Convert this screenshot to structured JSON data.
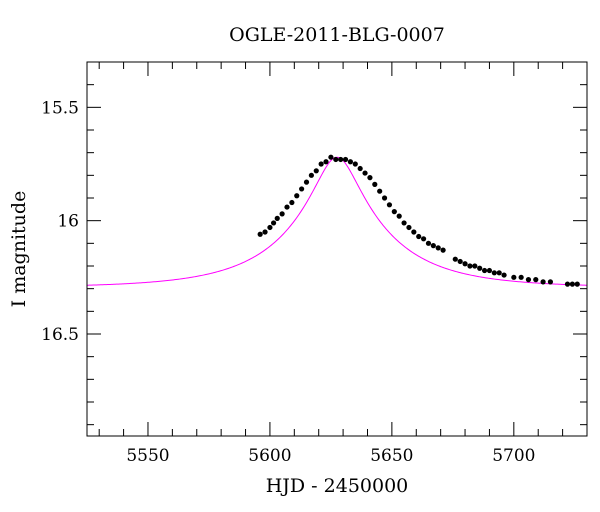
{
  "chart_data": {
    "type": "scatter",
    "title": "OGLE-2011-BLG-0007",
    "xlabel": "HJD - 2450000",
    "ylabel": "I magnitude",
    "xlim": [
      5525,
      5730
    ],
    "ylim": [
      16.95,
      15.3
    ],
    "y_inverted": true,
    "x_ticks": [
      5550,
      5600,
      5650,
      5700
    ],
    "y_ticks": [
      15.5,
      16,
      16.5
    ],
    "y_tick_labels": [
      "15.5",
      "16",
      "16.5"
    ],
    "grid": false,
    "colors": {
      "data_points": "#000000",
      "model_curve": "#ff00ff",
      "axes": "#000000"
    },
    "model": {
      "name": "",
      "kind": "microlensing point-lens fit",
      "t0": 5627.5,
      "u0": 0.21,
      "tE": 40,
      "baseline_mag": 16.295,
      "peak_mag": 15.72
    },
    "series": [
      {
        "name": "",
        "values": [
          [
            5596.0,
            16.06
          ],
          [
            5598.0,
            16.05
          ],
          [
            5600.0,
            16.03
          ],
          [
            5601.5,
            16.01
          ],
          [
            5603.0,
            15.99
          ],
          [
            5605.0,
            15.97
          ],
          [
            5607.0,
            15.94
          ],
          [
            5609.0,
            15.92
          ],
          [
            5611.0,
            15.89
          ],
          [
            5613.0,
            15.86
          ],
          [
            5615.0,
            15.83
          ],
          [
            5617.0,
            15.8
          ],
          [
            5619.0,
            15.78
          ],
          [
            5621.0,
            15.75
          ],
          [
            5623.0,
            15.74
          ],
          [
            5625.0,
            15.72
          ],
          [
            5627.0,
            15.73
          ],
          [
            5629.0,
            15.73
          ],
          [
            5631.0,
            15.73
          ],
          [
            5633.0,
            15.74
          ],
          [
            5635.0,
            15.75
          ],
          [
            5637.0,
            15.77
          ],
          [
            5639.0,
            15.79
          ],
          [
            5641.0,
            15.81
          ],
          [
            5643.0,
            15.84
          ],
          [
            5645.0,
            15.87
          ],
          [
            5647.0,
            15.9
          ],
          [
            5649.0,
            15.93
          ],
          [
            5651.0,
            15.96
          ],
          [
            5653.0,
            15.98
          ],
          [
            5655.0,
            16.01
          ],
          [
            5657.0,
            16.03
          ],
          [
            5659.0,
            16.05
          ],
          [
            5661.0,
            16.07
          ],
          [
            5663.0,
            16.08
          ],
          [
            5665.0,
            16.1
          ],
          [
            5667.0,
            16.11
          ],
          [
            5669.0,
            16.12
          ],
          [
            5671.0,
            16.13
          ],
          [
            5676.0,
            16.17
          ],
          [
            5678.0,
            16.18
          ],
          [
            5680.0,
            16.19
          ],
          [
            5682.0,
            16.2
          ],
          [
            5684.0,
            16.2
          ],
          [
            5686.0,
            16.21
          ],
          [
            5688.0,
            16.22
          ],
          [
            5690.0,
            16.22
          ],
          [
            5692.0,
            16.23
          ],
          [
            5694.0,
            16.23
          ],
          [
            5696.0,
            16.24
          ],
          [
            5700.0,
            16.25
          ],
          [
            5703.0,
            16.25
          ],
          [
            5706.0,
            16.26
          ],
          [
            5709.0,
            16.26
          ],
          [
            5712.0,
            16.27
          ],
          [
            5715.0,
            16.27
          ],
          [
            5722.0,
            16.28
          ],
          [
            5724.0,
            16.28
          ],
          [
            5726.0,
            16.28
          ]
        ]
      }
    ]
  }
}
